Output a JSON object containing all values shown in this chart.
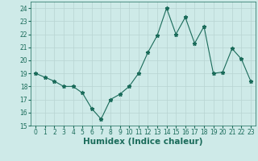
{
  "xlabel": "Humidex (Indice chaleur)",
  "x": [
    0,
    1,
    2,
    3,
    4,
    5,
    6,
    7,
    8,
    9,
    10,
    11,
    12,
    13,
    14,
    15,
    16,
    17,
    18,
    19,
    20,
    21,
    22,
    23
  ],
  "y": [
    19,
    18.7,
    18.4,
    18.0,
    18.0,
    17.5,
    16.3,
    15.5,
    17.0,
    17.4,
    18.0,
    19.0,
    20.6,
    21.9,
    24.0,
    22.0,
    23.3,
    21.3,
    22.6,
    19.0,
    19.1,
    20.9,
    20.1,
    18.4
  ],
  "line_color": "#1a6b5a",
  "marker": "*",
  "marker_size": 3.5,
  "bg_color": "#ceeae8",
  "grid_color": "#b8d4d2",
  "ylim": [
    15,
    24.5
  ],
  "yticks": [
    15,
    16,
    17,
    18,
    19,
    20,
    21,
    22,
    23,
    24
  ],
  "xticks": [
    0,
    1,
    2,
    3,
    4,
    5,
    6,
    7,
    8,
    9,
    10,
    11,
    12,
    13,
    14,
    15,
    16,
    17,
    18,
    19,
    20,
    21,
    22,
    23
  ],
  "tick_fontsize": 5.5,
  "xlabel_fontsize": 7.5,
  "line_width": 0.8
}
